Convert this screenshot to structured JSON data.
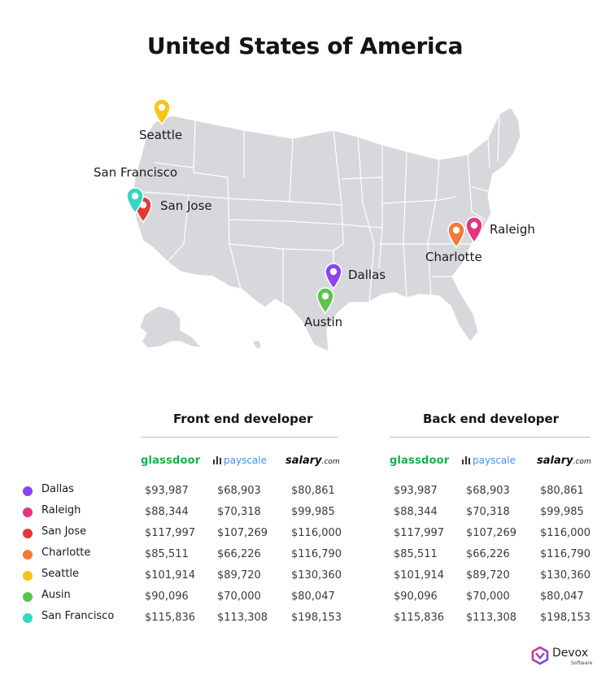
{
  "title": "United States of America",
  "colors": {
    "map_fill": "#d7d8dc",
    "map_border": "#ffffff",
    "dallas": "#8b45f0",
    "raleigh": "#e5337f",
    "san_jose": "#e03a3a",
    "charlotte": "#f07a3a",
    "seattle": "#f6c517",
    "austin": "#5cc44e",
    "san_francisco": "#33d7c4"
  },
  "map_markers": [
    {
      "name": "Seattle",
      "color": "#f6c517",
      "icon": "map-pin-icon"
    },
    {
      "name": "San Francisco",
      "color": "#33d7c4",
      "icon": "map-pin-icon"
    },
    {
      "name": "San Jose",
      "color": "#e03a3a",
      "icon": "map-pin-icon"
    },
    {
      "name": "Dallas",
      "color": "#8b45f0",
      "icon": "map-pin-icon"
    },
    {
      "name": "Austin",
      "color": "#5cc44e",
      "icon": "map-pin-icon"
    },
    {
      "name": "Charlotte",
      "color": "#f07a3a",
      "icon": "map-pin-icon"
    },
    {
      "name": "Raleigh",
      "color": "#e5337f",
      "icon": "map-pin-icon"
    }
  ],
  "sections": {
    "front": "Front end developer",
    "back": "Back end developer"
  },
  "sources": {
    "glassdoor": "glassdoor",
    "payscale": "payscale",
    "salary": "salary",
    "salary_suffix": ".com"
  },
  "legend": [
    {
      "city": "Dallas",
      "color": "#8b45f0"
    },
    {
      "city": "Raleigh",
      "color": "#e5337f"
    },
    {
      "city": "San Jose",
      "color": "#e03a3a"
    },
    {
      "city": "Charlotte",
      "color": "#f07a3a"
    },
    {
      "city": "Seattle",
      "color": "#f6c517"
    },
    {
      "city": "Ausin",
      "color": "#5cc44e"
    },
    {
      "city": "San Francisco",
      "color": "#33d7c4"
    }
  ],
  "front_salaries": [
    [
      "$93,987",
      "$68,903",
      "$80,861"
    ],
    [
      "$88,344",
      "$70,318",
      "$99,985"
    ],
    [
      "$117,997",
      "$107,269",
      "$116,000"
    ],
    [
      "$85,511",
      "$66,226",
      "$116,790"
    ],
    [
      "$101,914",
      "$89,720",
      "$130,360"
    ],
    [
      "$90,096",
      "$70,000",
      "$80,047"
    ],
    [
      "$115,836",
      "$113,308",
      "$198,153"
    ]
  ],
  "back_salaries": [
    [
      "$93,987",
      "$68,903",
      "$80,861"
    ],
    [
      "$88,344",
      "$70,318",
      "$99,985"
    ],
    [
      "$117,997",
      "$107,269",
      "$116,000"
    ],
    [
      "$85,511",
      "$66,226",
      "$116,790"
    ],
    [
      "$101,914",
      "$89,720",
      "$130,360"
    ],
    [
      "$90,096",
      "$70,000",
      "$80,047"
    ],
    [
      "$115,836",
      "$113,308",
      "$198,153"
    ]
  ],
  "brand": {
    "name": "Devox",
    "tagline": "Software",
    "icon": "devox-logo-icon"
  }
}
